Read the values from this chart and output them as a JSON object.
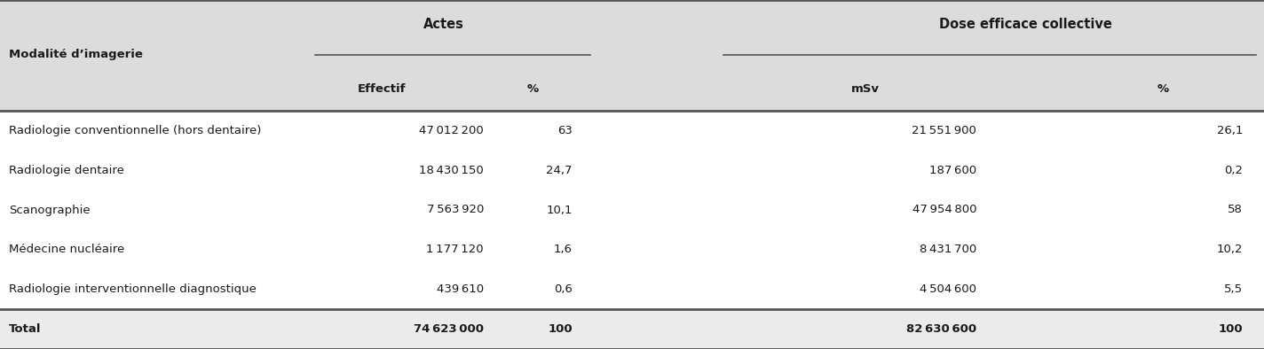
{
  "header_group1": "Actes",
  "header_group2": "Dose efficace collective",
  "col_headers": [
    "Modalité d’imagerie",
    "Effectif",
    "%",
    "mSv",
    "%"
  ],
  "rows": [
    [
      "Radiologie conventionnelle (hors dentaire)",
      "47 012 200",
      "63",
      "21 551 900",
      "26,1"
    ],
    [
      "Radiologie dentaire",
      "18 430 150",
      "24,7",
      "187 600",
      "0,2"
    ],
    [
      "Scanographie",
      "7 563 920",
      "10,1",
      "47 954 800",
      "58"
    ],
    [
      "Médecine nucléaire",
      "1 177 120",
      "1,6",
      "8 431 700",
      "10,2"
    ],
    [
      "Radiologie interventionnelle diagnostique",
      "439 610",
      "0,6",
      "4 504 600",
      "5,5"
    ]
  ],
  "total_row": [
    "Total",
    "74 623 000",
    "100",
    "82 630 600",
    "100"
  ],
  "bg_header": "#dcdcdc",
  "bg_white": "#ffffff",
  "bg_total": "#ebebeb",
  "text_color": "#1a1a1a",
  "line_color": "#555555",
  "font_size": 9.5,
  "header_font_size": 10.5,
  "sub_header_font_size": 9.5
}
